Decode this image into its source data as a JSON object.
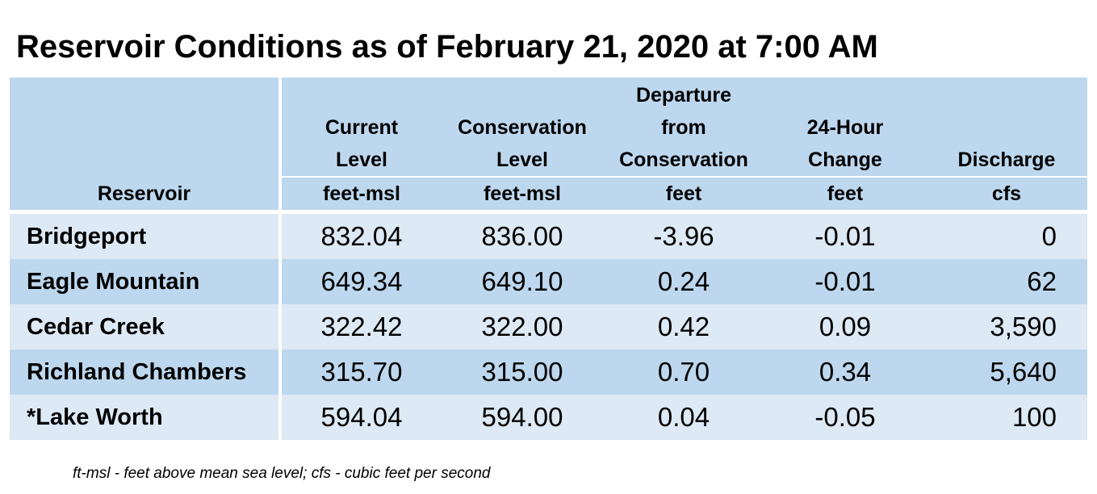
{
  "title": "Reservoir Conditions as of February 21, 2020 at 7:00 AM",
  "table": {
    "headers": [
      {
        "label": "Reservoir",
        "unit": ""
      },
      {
        "label": "Current Level",
        "unit": "feet-msl"
      },
      {
        "label": "Conservation Level",
        "unit": "feet-msl"
      },
      {
        "label": "Departure from Conservation",
        "unit": "feet"
      },
      {
        "label": "24-Hour Change",
        "unit": "feet"
      },
      {
        "label": "Discharge",
        "unit": "cfs"
      }
    ],
    "header_lines": {
      "current": [
        "Current",
        "Level"
      ],
      "conservation": [
        "Conservation",
        "Level"
      ],
      "departure": [
        "Departure",
        "from",
        "Conservation"
      ],
      "change": [
        "24-Hour",
        "Change"
      ],
      "discharge": [
        "Discharge"
      ]
    },
    "rows": [
      {
        "name": "Bridgeport",
        "current": "832.04",
        "conservation": "836.00",
        "departure": "-3.96",
        "change": "-0.01",
        "discharge": "0"
      },
      {
        "name": "Eagle Mountain",
        "current": "649.34",
        "conservation": "649.10",
        "departure": "0.24",
        "change": "-0.01",
        "discharge": "62"
      },
      {
        "name": "Cedar Creek",
        "current": "322.42",
        "conservation": "322.00",
        "departure": "0.42",
        "change": "0.09",
        "discharge": "3,590"
      },
      {
        "name": "Richland Chambers",
        "current": "315.70",
        "conservation": "315.00",
        "departure": "0.70",
        "change": "0.34",
        "discharge": "5,640"
      },
      {
        "name": "*Lake Worth",
        "current": "594.04",
        "conservation": "594.00",
        "departure": "0.04",
        "change": "-0.05",
        "discharge": "100"
      }
    ]
  },
  "footnote": "ft-msl - feet above mean sea level; cfs - cubic feet per second",
  "colors": {
    "header_bg": "#bdd7ee",
    "row_light": "#dde9f5",
    "row_dark": "#bdd7ee"
  }
}
